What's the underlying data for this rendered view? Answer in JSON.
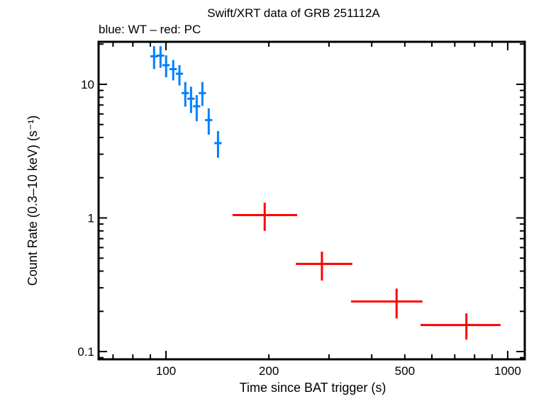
{
  "chart_data": {
    "type": "scatter",
    "title": "Swift/XRT data of GRB 251112A",
    "subtitle": "blue: WT – red: PC",
    "xlabel": "Time since BAT trigger (s)",
    "ylabel": "Count Rate (0.3–10 keV) (s⁻¹)",
    "xscale": "log",
    "yscale": "log",
    "xlim": [
      63.5,
      1122
    ],
    "ylim": [
      0.0875,
      20.8
    ],
    "xticks": [
      100,
      200,
      500,
      1000
    ],
    "xtick_labels": [
      "100",
      "200",
      "500",
      "1000"
    ],
    "yticks": [
      0.1,
      1,
      10
    ],
    "ytick_labels": [
      "0.1",
      "1",
      "10"
    ],
    "grid": false,
    "legend": "none",
    "series": [
      {
        "name": "WT",
        "color": "#0080ff",
        "points": [
          {
            "x": 92.3,
            "xerr": 2.3,
            "y": 16.2,
            "ylo": 13.0,
            "yhi": 19.3
          },
          {
            "x": 96.4,
            "xerr": 2.4,
            "y": 16.4,
            "ylo": 13.3,
            "yhi": 19.3
          },
          {
            "x": 100.1,
            "xerr": 2.5,
            "y": 13.9,
            "ylo": 11.3,
            "yhi": 16.5
          },
          {
            "x": 105.0,
            "xerr": 2.6,
            "y": 13.0,
            "ylo": 10.7,
            "yhi": 15.2
          },
          {
            "x": 109.5,
            "xerr": 2.7,
            "y": 12.0,
            "ylo": 9.8,
            "yhi": 13.9
          },
          {
            "x": 113.9,
            "xerr": 2.8,
            "y": 8.6,
            "ylo": 6.8,
            "yhi": 10.4
          },
          {
            "x": 118.4,
            "xerr": 2.9,
            "y": 7.8,
            "ylo": 6.1,
            "yhi": 9.6
          },
          {
            "x": 123.0,
            "xerr": 3.0,
            "y": 6.85,
            "ylo": 5.3,
            "yhi": 8.3
          },
          {
            "x": 127.8,
            "xerr": 3.1,
            "y": 8.6,
            "ylo": 6.9,
            "yhi": 10.4
          },
          {
            "x": 133.4,
            "xerr": 3.3,
            "y": 5.4,
            "ylo": 4.2,
            "yhi": 6.6
          },
          {
            "x": 142.0,
            "xerr": 3.5,
            "y": 3.63,
            "ylo": 2.82,
            "yhi": 4.47
          }
        ]
      },
      {
        "name": "PC",
        "color": "#ff0000",
        "points": [
          {
            "x": 194.5,
            "xlo": 156.6,
            "xhi": 242,
            "y": 1.05,
            "ylo": 0.8,
            "yhi": 1.3
          },
          {
            "x": 286,
            "xlo": 240,
            "xhi": 351,
            "y": 0.453,
            "ylo": 0.34,
            "yhi": 0.56
          },
          {
            "x": 473,
            "xlo": 348,
            "xhi": 563,
            "y": 0.237,
            "ylo": 0.177,
            "yhi": 0.296
          },
          {
            "x": 757,
            "xlo": 556,
            "xhi": 953,
            "y": 0.158,
            "ylo": 0.123,
            "yhi": 0.193
          }
        ]
      }
    ]
  }
}
